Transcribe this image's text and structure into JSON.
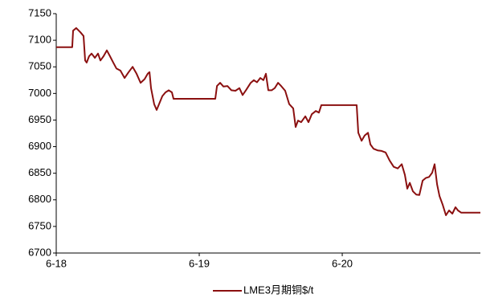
{
  "chart_data": {
    "type": "line",
    "x": [
      0,
      0.112,
      0.118,
      0.14,
      0.169,
      0.191,
      0.202,
      0.213,
      0.23,
      0.247,
      0.27,
      0.292,
      0.309,
      0.331,
      0.354,
      0.376,
      0.399,
      0.421,
      0.449,
      0.478,
      0.506,
      0.534,
      0.562,
      0.59,
      0.618,
      0.64,
      0.652,
      0.663,
      0.685,
      0.702,
      0.719,
      0.742,
      0.764,
      0.787,
      0.809,
      0.82,
      1.112,
      1.124,
      1.146,
      1.169,
      1.197,
      1.225,
      1.253,
      1.281,
      1.303,
      1.326,
      1.36,
      1.382,
      1.404,
      1.427,
      1.449,
      1.466,
      1.483,
      1.506,
      1.528,
      1.551,
      1.573,
      1.601,
      1.629,
      1.657,
      1.674,
      1.691,
      1.713,
      1.742,
      1.764,
      1.787,
      1.815,
      1.837,
      1.854,
      2.101,
      2.112,
      2.135,
      2.157,
      2.18,
      2.197,
      2.219,
      2.247,
      2.275,
      2.303,
      2.331,
      2.36,
      2.388,
      2.416,
      2.438,
      2.455,
      2.472,
      2.494,
      2.517,
      2.539,
      2.562,
      2.584,
      2.607,
      2.629,
      2.646,
      2.663,
      2.68,
      2.702,
      2.725,
      2.747,
      2.77,
      2.792,
      2.809,
      2.831,
      2.966
    ],
    "series": [
      {
        "name": "LME3月期铜$/t",
        "color": "#8b1010",
        "values": [
          7087,
          7087,
          7118,
          7123,
          7115,
          7108,
          7062,
          7058,
          7070,
          7075,
          7067,
          7075,
          7062,
          7070,
          7081,
          7070,
          7058,
          7047,
          7043,
          7029,
          7040,
          7050,
          7037,
          7020,
          7027,
          7037,
          7040,
          7010,
          6980,
          6969,
          6980,
          6995,
          7002,
          7006,
          7002,
          6990,
          6990,
          7014,
          7020,
          7013,
          7014,
          7006,
          7005,
          7010,
          6997,
          7006,
          7020,
          7025,
          7021,
          7029,
          7025,
          7037,
          7006,
          7006,
          7010,
          7020,
          7014,
          7005,
          6980,
          6972,
          6937,
          6949,
          6946,
          6957,
          6946,
          6961,
          6967,
          6964,
          6978,
          6978,
          6926,
          6911,
          6921,
          6926,
          6904,
          6896,
          6893,
          6892,
          6889,
          6874,
          6862,
          6859,
          6867,
          6847,
          6821,
          6832,
          6816,
          6810,
          6809,
          6836,
          6841,
          6843,
          6851,
          6867,
          6829,
          6807,
          6791,
          6771,
          6780,
          6774,
          6786,
          6780,
          6776,
          6776
        ]
      }
    ],
    "xlim": [
      0,
      2.966
    ],
    "xticks": [
      {
        "value": 0,
        "label": "6-18"
      },
      {
        "value": 1,
        "label": "6-19"
      },
      {
        "value": 2,
        "label": "6-20"
      }
    ],
    "ylim": [
      6700,
      7150
    ],
    "yticks": [
      6700,
      6750,
      6800,
      6850,
      6900,
      6950,
      7000,
      7050,
      7100,
      7150
    ],
    "grid": false,
    "legend": "bottom"
  }
}
